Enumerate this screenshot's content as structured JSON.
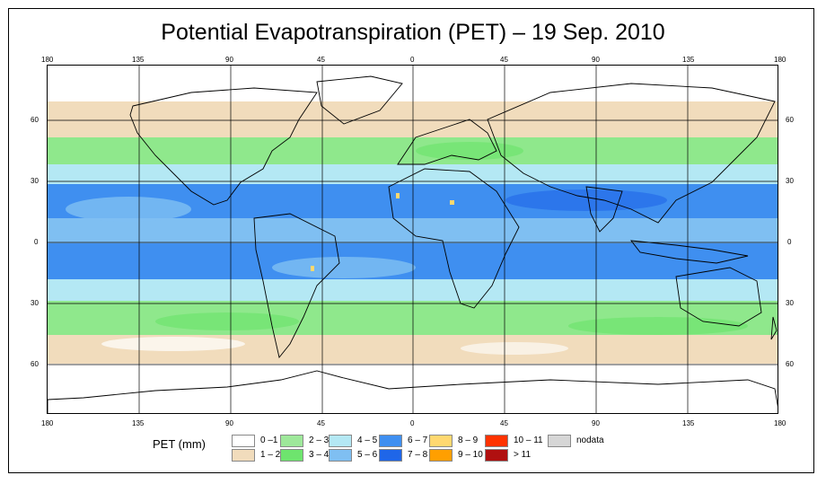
{
  "title": "Potential Evapotranspiration (PET) – 19 Sep. 2010",
  "axes": {
    "lon_labels": [
      "180",
      "135",
      "90",
      "45",
      "0",
      "45",
      "90",
      "135",
      "180"
    ],
    "lat_labels": [
      "60",
      "30",
      "0",
      "30",
      "60"
    ]
  },
  "legend": {
    "title": "PET (mm)",
    "items": [
      {
        "label": "0 –1",
        "color": "#ffffff"
      },
      {
        "label": "1 – 2",
        "color": "#f1dcbc"
      },
      {
        "label": "2 – 3",
        "color": "#9ee89a"
      },
      {
        "label": "3 – 4",
        "color": "#6ee46e"
      },
      {
        "label": "4 – 5",
        "color": "#b4e8f4"
      },
      {
        "label": "5 – 6",
        "color": "#7fbff2"
      },
      {
        "label": "6 – 7",
        "color": "#3f8ff0"
      },
      {
        "label": "7 – 8",
        "color": "#1f66e8"
      },
      {
        "label": "8 – 9",
        "color": "#ffd870"
      },
      {
        "label": "9 – 10",
        "color": "#ff9f00"
      },
      {
        "label": "10 – 11",
        "color": "#ff3300"
      },
      {
        "label": "> 11",
        "color": "#b01010"
      },
      {
        "label": "nodata",
        "color": "#d6d6d6"
      }
    ]
  }
}
